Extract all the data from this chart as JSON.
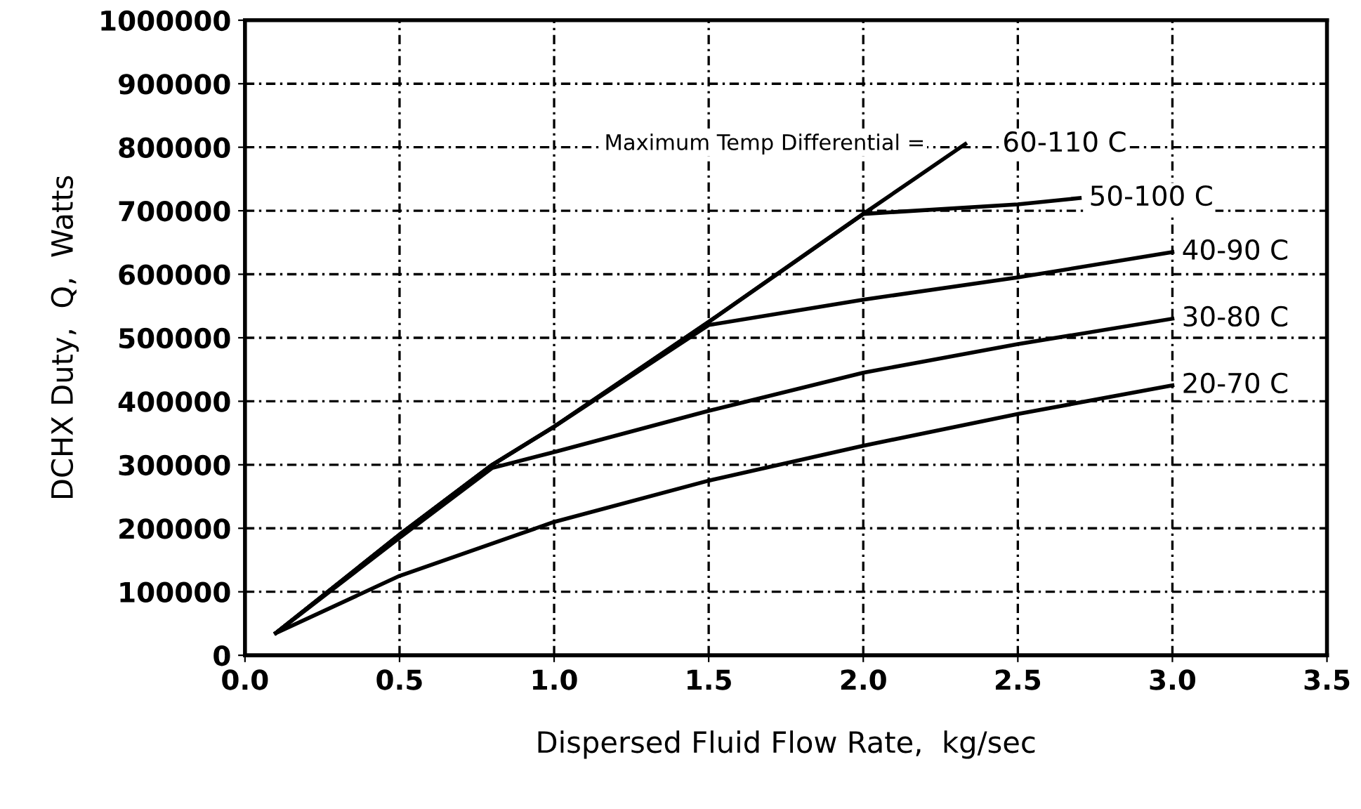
{
  "chart_data": {
    "type": "line",
    "xlabel": "Dispersed Fluid Flow Rate,  kg/sec",
    "ylabel": "DCHX Duty,  Q,  Watts",
    "annotations": [
      "Maximum Temp Differential ="
    ],
    "xlim": [
      0,
      3.5
    ],
    "xticks": [
      {
        "value": 0,
        "label": "0.0"
      },
      0.5,
      {
        "value": 1,
        "label": "1.0"
      },
      1.5,
      {
        "value": 2,
        "label": "2.0"
      },
      2.5,
      {
        "value": 3,
        "label": "3.0"
      },
      3.5
    ],
    "ylim": [
      0,
      1000000
    ],
    "yticks": [
      0,
      100000,
      200000,
      300000,
      400000,
      500000,
      600000,
      700000,
      800000,
      900000,
      1000000
    ],
    "grid": true,
    "line_style": "solid",
    "marker": "none",
    "legend": false,
    "series": [
      {
        "name": "60-110 C",
        "color": "#000000",
        "x": [
          0.1,
          0.5,
          0.8,
          1.0,
          1.5,
          2.0,
          2.33
        ],
        "values": [
          35000,
          190000,
          300000,
          360000,
          525000,
          695000,
          805000
        ]
      },
      {
        "name": "50-100 C",
        "color": "#000000",
        "x": [
          0.1,
          0.5,
          0.8,
          1.0,
          1.5,
          2.0,
          2.5,
          2.7
        ],
        "values": [
          35000,
          190000,
          300000,
          360000,
          525000,
          695000,
          710000,
          720000
        ]
      },
      {
        "name": "40-90 C",
        "color": "#000000",
        "x": [
          0.1,
          0.5,
          0.8,
          1.0,
          1.5,
          2.0,
          2.5,
          3.0
        ],
        "values": [
          35000,
          190000,
          300000,
          360000,
          520000,
          560000,
          595000,
          635000
        ]
      },
      {
        "name": "30-80 C",
        "color": "#000000",
        "x": [
          0.1,
          0.5,
          0.8,
          1.0,
          1.5,
          2.0,
          2.5,
          3.0
        ],
        "values": [
          35000,
          185000,
          295000,
          320000,
          385000,
          445000,
          490000,
          530000
        ]
      },
      {
        "name": "20-70 C",
        "color": "#000000",
        "x": [
          0.1,
          0.5,
          1.0,
          1.5,
          2.0,
          2.5,
          3.0
        ],
        "values": [
          35000,
          125000,
          210000,
          275000,
          330000,
          380000,
          425000
        ]
      }
    ]
  }
}
